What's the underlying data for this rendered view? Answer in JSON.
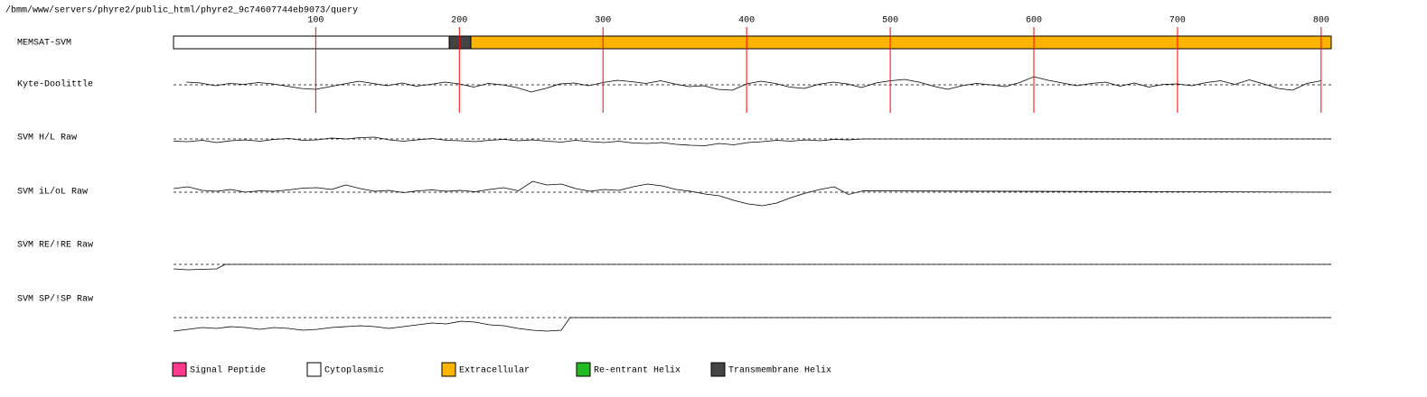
{
  "path": "/bmm/www/servers/phyre2/public_html/phyre2_9c74607744eb9073/query",
  "xlim": [
    1,
    807
  ],
  "xticks": [
    100,
    200,
    300,
    400,
    500,
    600,
    700,
    800
  ],
  "ylim": [
    -4,
    4
  ],
  "tracks": [
    {
      "label": "MEMSAT-SVM",
      "segments": [
        {
          "start": 1,
          "end": 193,
          "color": "#ffffff"
        },
        {
          "start": 193,
          "end": 208,
          "color": "#444444"
        },
        {
          "start": 208,
          "end": 807,
          "color": "#ffb400"
        }
      ]
    },
    {
      "label": "Kyte-Doolittle",
      "x": [
        10,
        20,
        30,
        40,
        50,
        60,
        70,
        80,
        90,
        100,
        110,
        120,
        130,
        140,
        150,
        160,
        170,
        180,
        190,
        200,
        210,
        220,
        230,
        240,
        250,
        260,
        270,
        280,
        290,
        300,
        310,
        320,
        330,
        340,
        350,
        360,
        370,
        380,
        390,
        400,
        410,
        420,
        430,
        440,
        450,
        460,
        470,
        480,
        490,
        500,
        510,
        520,
        530,
        540,
        550,
        560,
        570,
        580,
        590,
        600,
        610,
        620,
        630,
        640,
        650,
        660,
        670,
        680,
        690,
        700,
        710,
        720,
        730,
        740,
        750,
        760,
        770,
        780,
        790,
        800
      ],
      "values": [
        0.6,
        0.4,
        -0.2,
        0.3,
        0.1,
        0.5,
        0.2,
        -0.3,
        -0.8,
        -1.0,
        -0.4,
        0.2,
        0.8,
        0.3,
        -0.2,
        0.4,
        -0.3,
        0.1,
        0.6,
        0.2,
        -0.5,
        0.3,
        0.0,
        -0.6,
        -1.6,
        -0.8,
        0.2,
        0.4,
        -0.2,
        0.5,
        1.0,
        0.7,
        0.3,
        0.9,
        0.2,
        -0.4,
        -0.2,
        -1.0,
        -1.2,
        0.2,
        0.8,
        0.3,
        -0.5,
        -0.8,
        0.1,
        0.6,
        0.2,
        -0.6,
        0.4,
        0.9,
        1.2,
        0.6,
        -0.3,
        -1.0,
        -0.2,
        0.3,
        0.0,
        -0.4,
        0.5,
        1.8,
        1.0,
        0.4,
        -0.2,
        0.3,
        0.6,
        -0.3,
        0.4,
        -0.5,
        0.1,
        0.2,
        -0.2,
        0.5,
        0.9,
        0.1,
        1.1,
        0.2,
        -0.8,
        -1.2,
        0.3,
        0.9
      ]
    },
    {
      "label": "SVM H/L Raw",
      "x": [
        1,
        11,
        21,
        31,
        41,
        51,
        61,
        71,
        81,
        91,
        101,
        111,
        121,
        131,
        141,
        151,
        161,
        171,
        181,
        191,
        201,
        211,
        221,
        231,
        241,
        251,
        261,
        271,
        281,
        291,
        301,
        311,
        321,
        331,
        341,
        351,
        361,
        371,
        381,
        391,
        401,
        411,
        421,
        431,
        441,
        451,
        461,
        471,
        481,
        807
      ],
      "values": [
        -0.5,
        -0.6,
        -0.3,
        -0.8,
        -0.4,
        -0.2,
        -0.5,
        -0.1,
        0.1,
        -0.3,
        -0.2,
        0.2,
        0.0,
        0.3,
        0.4,
        -0.2,
        -0.5,
        -0.2,
        0.1,
        -0.3,
        -0.4,
        -0.6,
        -0.3,
        -0.1,
        -0.4,
        -0.2,
        -0.5,
        -0.7,
        -0.3,
        -0.6,
        -0.8,
        -0.5,
        -0.9,
        -1.0,
        -0.8,
        -1.2,
        -1.4,
        -1.5,
        -1.0,
        -1.3,
        -0.8,
        -0.6,
        -0.3,
        -0.5,
        -0.2,
        -0.4,
        -0.1,
        -0.2,
        0.0,
        0.0
      ]
    },
    {
      "label": "SVM iL/oL Raw",
      "x": [
        1,
        11,
        21,
        31,
        41,
        51,
        61,
        71,
        81,
        91,
        101,
        111,
        121,
        131,
        141,
        151,
        161,
        171,
        181,
        191,
        201,
        211,
        221,
        231,
        241,
        251,
        261,
        271,
        281,
        291,
        301,
        311,
        321,
        331,
        341,
        351,
        361,
        371,
        381,
        391,
        401,
        411,
        421,
        431,
        441,
        451,
        461,
        471,
        481,
        807
      ],
      "values": [
        0.8,
        1.2,
        0.4,
        0.2,
        0.6,
        0.0,
        0.3,
        0.2,
        0.5,
        0.9,
        1.0,
        0.6,
        1.6,
        0.8,
        0.2,
        0.4,
        -0.1,
        0.3,
        0.5,
        0.2,
        0.4,
        0.1,
        0.6,
        1.0,
        0.3,
        2.4,
        1.6,
        1.8,
        0.8,
        0.2,
        0.6,
        0.4,
        1.2,
        1.8,
        1.4,
        0.6,
        0.2,
        -0.4,
        -0.8,
        -1.8,
        -2.6,
        -3.0,
        -2.4,
        -1.2,
        -0.2,
        0.6,
        1.2,
        -0.5,
        0.3,
        0.0
      ]
    },
    {
      "label": "SVM RE/!RE Raw",
      "x": [
        1,
        11,
        21,
        31,
        37,
        807
      ],
      "values": [
        -1.0,
        -1.2,
        -1.1,
        -1.0,
        0.0,
        0.0
      ]
    },
    {
      "label": "SVM SP/!SP Raw",
      "x": [
        1,
        11,
        21,
        31,
        41,
        51,
        61,
        71,
        81,
        91,
        101,
        111,
        121,
        131,
        141,
        151,
        161,
        171,
        181,
        191,
        201,
        211,
        221,
        231,
        241,
        251,
        261,
        271,
        277,
        807
      ],
      "values": [
        -3.0,
        -2.6,
        -2.2,
        -2.4,
        -2.0,
        -2.2,
        -2.6,
        -2.2,
        -2.4,
        -2.8,
        -2.6,
        -2.2,
        -2.0,
        -1.8,
        -2.0,
        -2.4,
        -2.0,
        -1.6,
        -1.2,
        -1.4,
        -0.8,
        -1.0,
        -1.6,
        -1.8,
        -2.4,
        -2.8,
        -3.0,
        -2.8,
        0.0,
        0.0
      ]
    }
  ],
  "legend": [
    {
      "label": "Signal Peptide",
      "color": "#ff3a8c"
    },
    {
      "label": "Cytoplasmic",
      "color": "#ffffff"
    },
    {
      "label": "Extracellular",
      "color": "#ffb400"
    },
    {
      "label": "Re-entrant Helix",
      "color": "#22bb22"
    },
    {
      "label": "Transmembrane Helix",
      "color": "#444444"
    }
  ]
}
